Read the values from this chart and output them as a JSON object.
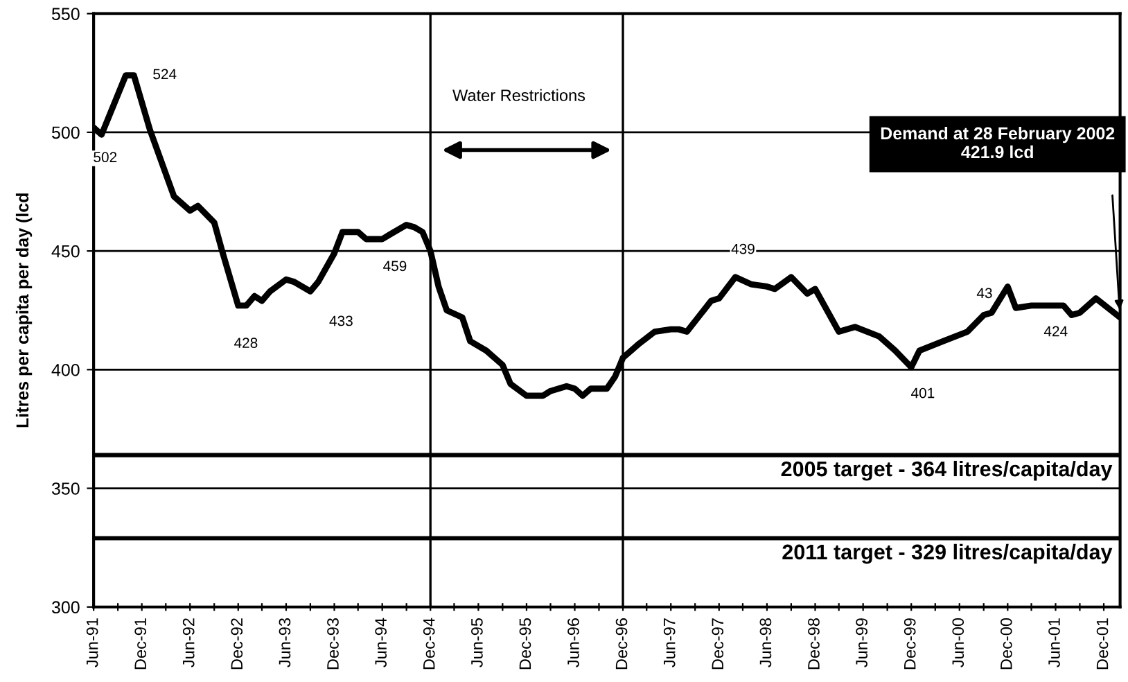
{
  "chart_data": {
    "type": "line",
    "ylabel": "Litres per capita per day (lcd",
    "x": [
      "1991-06",
      "1991-07",
      "1991-10",
      "1991-11",
      "1992-01",
      "1992-04",
      "1992-06",
      "1992-07",
      "1992-09",
      "1992-10",
      "1992-12",
      "1993-01",
      "1993-02",
      "1993-03",
      "1993-04",
      "1993-06",
      "1993-07",
      "1993-09",
      "1993-10",
      "1993-12",
      "1994-01",
      "1994-03",
      "1994-04",
      "1994-06",
      "1994-07",
      "1994-09",
      "1994-10",
      "1994-11",
      "1994-12",
      "1995-01",
      "1995-02",
      "1995-04",
      "1995-05",
      "1995-07",
      "1995-09",
      "1995-10",
      "1995-12",
      "1996-02",
      "1996-03",
      "1996-05",
      "1996-06",
      "1996-07",
      "1996-08",
      "1996-10",
      "1996-11",
      "1996-12",
      "1997-02",
      "1997-04",
      "1997-06",
      "1997-07",
      "1997-08",
      "1997-11",
      "1997-12",
      "1998-02",
      "1998-04",
      "1998-06",
      "1998-07",
      "1998-09",
      "1998-11",
      "1998-12",
      "1999-03",
      "1999-05",
      "1999-08",
      "1999-10",
      "1999-12",
      "2000-01",
      "2000-04",
      "2000-07",
      "2000-09",
      "2000-10",
      "2000-12",
      "2001-01",
      "2001-03",
      "2001-07",
      "2001-08",
      "2001-09",
      "2001-11",
      "2002-02"
    ],
    "series": [
      {
        "color": "#000000",
        "values": [
          502,
          499,
          524,
          524,
          501,
          473,
          467,
          469,
          462,
          450,
          427,
          427,
          431,
          429,
          433,
          438,
          437,
          433,
          437,
          449,
          458,
          458,
          455,
          455,
          457,
          461,
          460,
          458,
          450,
          435,
          425,
          422,
          412,
          408,
          402,
          394,
          389,
          389,
          391,
          393,
          392,
          389,
          392,
          392,
          397,
          405,
          411,
          416,
          417,
          417,
          416,
          429,
          430,
          439,
          436,
          435,
          434,
          439,
          432,
          434,
          416,
          418,
          414,
          408,
          401,
          408,
          412,
          416,
          423,
          424,
          435,
          426,
          427,
          427,
          423,
          424,
          430,
          422
        ]
      }
    ],
    "xlim": [
      "1991-06",
      "2002-02"
    ],
    "xticks": [
      {
        "value": "1991-06",
        "label": "Jun-91"
      },
      {
        "value": "1991-09",
        "label": null
      },
      {
        "value": "1991-12",
        "label": "Dec-91"
      },
      {
        "value": "1992-03",
        "label": null
      },
      {
        "value": "1992-06",
        "label": "Jun-92"
      },
      {
        "value": "1992-09",
        "label": null
      },
      {
        "value": "1992-12",
        "label": "Dec-92"
      },
      {
        "value": "1993-03",
        "label": null
      },
      {
        "value": "1993-06",
        "label": "Jun-93"
      },
      {
        "value": "1993-09",
        "label": null
      },
      {
        "value": "1993-12",
        "label": "Dec-93"
      },
      {
        "value": "1994-03",
        "label": null
      },
      {
        "value": "1994-06",
        "label": "Jun-94"
      },
      {
        "value": "1994-09",
        "label": null
      },
      {
        "value": "1994-12",
        "label": "Dec-94"
      },
      {
        "value": "1995-03",
        "label": null
      },
      {
        "value": "1995-06",
        "label": "Jun-95"
      },
      {
        "value": "1995-09",
        "label": null
      },
      {
        "value": "1995-12",
        "label": "Dec-95"
      },
      {
        "value": "1996-03",
        "label": null
      },
      {
        "value": "1996-06",
        "label": "Jun-96"
      },
      {
        "value": "1996-09",
        "label": null
      },
      {
        "value": "1996-12",
        "label": "Dec-96"
      },
      {
        "value": "1997-03",
        "label": null
      },
      {
        "value": "1997-06",
        "label": "Jun-97"
      },
      {
        "value": "1997-09",
        "label": null
      },
      {
        "value": "1997-12",
        "label": "Dec-97"
      },
      {
        "value": "1998-03",
        "label": null
      },
      {
        "value": "1998-06",
        "label": "Jun-98"
      },
      {
        "value": "1998-09",
        "label": null
      },
      {
        "value": "1998-12",
        "label": "Dec-98"
      },
      {
        "value": "1999-03",
        "label": null
      },
      {
        "value": "1999-06",
        "label": "Jun-99"
      },
      {
        "value": "1999-09",
        "label": null
      },
      {
        "value": "1999-12",
        "label": "Dec-99"
      },
      {
        "value": "2000-03",
        "label": null
      },
      {
        "value": "2000-06",
        "label": "Jun-00"
      },
      {
        "value": "2000-09",
        "label": null
      },
      {
        "value": "2000-12",
        "label": "Dec-00"
      },
      {
        "value": "2001-03",
        "label": null
      },
      {
        "value": "2001-06",
        "label": "Jun-01"
      },
      {
        "value": "2001-09",
        "label": null
      },
      {
        "value": "2001-12",
        "label": "Dec-01"
      }
    ],
    "ylim": [
      300,
      550
    ],
    "yticks": [
      300,
      350,
      400,
      450,
      500,
      550
    ],
    "grid": "y",
    "legend": false,
    "marker": "none",
    "line_style": "solid",
    "ref_lines": [
      {
        "axis": "y",
        "value": 364,
        "label": "2005 target - 364 litres/capita/day"
      },
      {
        "axis": "y",
        "value": 329,
        "label": "2011 target - 329 litres/capita/day"
      },
      {
        "axis": "x",
        "value": "1994-12",
        "label": null
      },
      {
        "axis": "x",
        "value": "1996-12",
        "label": null
      }
    ],
    "annotations": [
      "Water Restrictions",
      {
        "text": "502",
        "x": "1991-06",
        "y": 502
      },
      {
        "text": "524",
        "x": "1991-11",
        "y": 524
      },
      {
        "text": "428",
        "x": "1992-12",
        "y": 427
      },
      {
        "text": "433",
        "x": "1993-09",
        "y": 433
      },
      {
        "text": "459",
        "x": "1994-09",
        "y": 461
      },
      {
        "text": "439",
        "x": "1998-02",
        "y": 439
      },
      {
        "text": "401",
        "x": "1999-12",
        "y": 401
      },
      {
        "text": "43",
        "x": "2000-12",
        "y": 435
      },
      {
        "text": "424",
        "x": "2001-07",
        "y": 427
      },
      "Demand at 28 February 2002\n421.9 lcd"
    ]
  }
}
